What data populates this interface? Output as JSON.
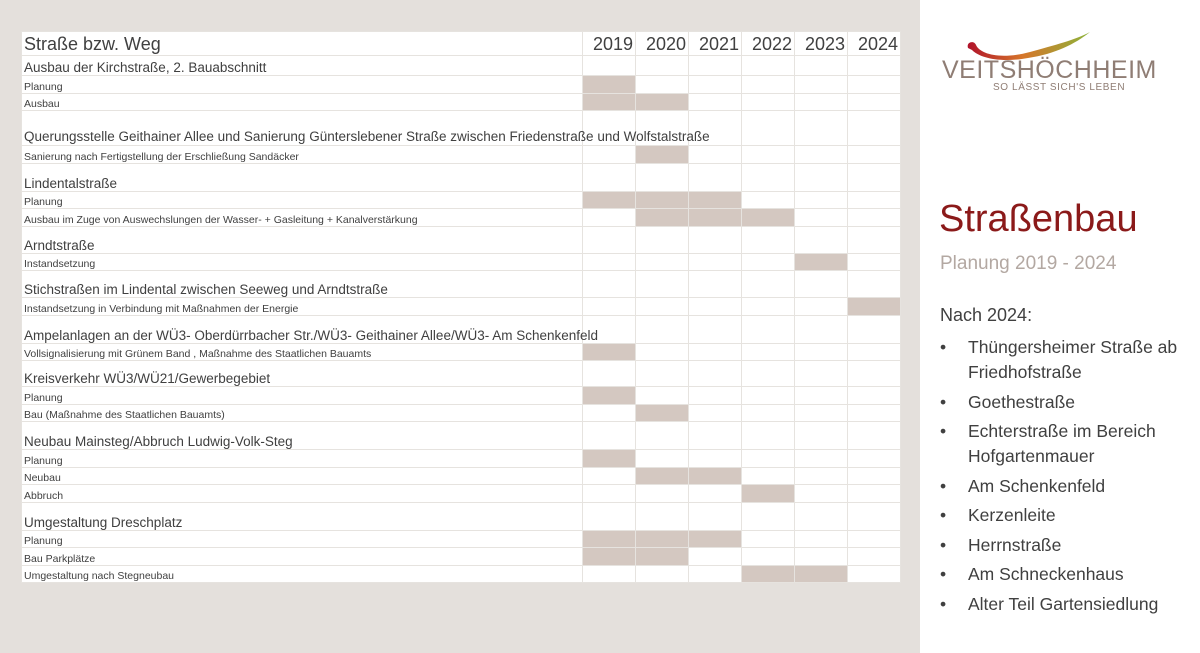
{
  "table": {
    "header_label": "Straße bzw. Weg",
    "years": [
      "2019",
      "2020",
      "2021",
      "2022",
      "2023",
      "2024"
    ],
    "groups": [
      {
        "title": "Ausbau der Kirchstraße, 2. Bauabschnitt",
        "items": [
          {
            "label": "Planung",
            "active": [
              true,
              false,
              false,
              false,
              false,
              false
            ]
          },
          {
            "label": "Ausbau",
            "active": [
              true,
              true,
              false,
              false,
              false,
              false
            ]
          }
        ]
      },
      {
        "title": "Querungsstelle Geithainer Allee und Sanierung Güntersleben​er Straße zwischen Friedenstraße und Wolfstalstraße",
        "items": [
          {
            "label": "Sanierung nach Fertigstellung der Erschließung Sandäcker",
            "active": [
              false,
              true,
              false,
              false,
              false,
              false
            ]
          }
        ]
      },
      {
        "title": "Lindentalstraße",
        "items": [
          {
            "label": "Planung",
            "active": [
              true,
              true,
              true,
              false,
              false,
              false
            ]
          },
          {
            "label": "Ausbau im Zuge von Auswechslungen der Wasser- + Gasleitung + Kanalverstärkung",
            "active": [
              false,
              true,
              true,
              true,
              false,
              false
            ]
          }
        ]
      },
      {
        "title": "Arndtstraße",
        "items": [
          {
            "label": "Instandsetzung",
            "active": [
              false,
              false,
              false,
              false,
              true,
              false
            ]
          }
        ]
      },
      {
        "title": "Stichstraßen im Lindental zwischen Seeweg und Arndtstraße",
        "items": [
          {
            "label": "Instandsetzung in Verbindung mit Maßnahmen der Energie",
            "active": [
              false,
              false,
              false,
              false,
              false,
              true
            ]
          }
        ]
      },
      {
        "title": "Ampelanlagen an der WÜ3- Oberdürrbacher Str./WÜ3- Geithainer Allee/WÜ3- Am Schenkenfeld",
        "items": [
          {
            "label": "Vollsignalisierung mit Grünem Band , Maßnahme des Staatlichen Bauamts",
            "active": [
              true,
              false,
              false,
              false,
              false,
              false
            ]
          }
        ]
      },
      {
        "title": "Kreisverkehr WÜ3/WÜ21/Gewerbegebiet",
        "items": [
          {
            "label": "Planung",
            "active": [
              true,
              false,
              false,
              false,
              false,
              false
            ]
          },
          {
            "label": "Bau (Maßnahme des Staatlichen Bauamts)",
            "active": [
              false,
              true,
              false,
              false,
              false,
              false
            ]
          }
        ]
      },
      {
        "title": "Neubau Mainsteg/Abbruch Ludwig-Volk-Steg",
        "items": [
          {
            "label": "Planung",
            "active": [
              true,
              false,
              false,
              false,
              false,
              false
            ]
          },
          {
            "label": "Neubau",
            "active": [
              false,
              true,
              true,
              false,
              false,
              false
            ]
          },
          {
            "label": "Abbruch",
            "active": [
              false,
              false,
              false,
              true,
              false,
              false
            ]
          }
        ]
      },
      {
        "title": "Umgestaltung Dreschplatz",
        "items": [
          {
            "label": "Planung",
            "active": [
              true,
              true,
              true,
              false,
              false,
              false
            ]
          },
          {
            "label": "Bau Parkplätze",
            "active": [
              true,
              true,
              false,
              false,
              false,
              false
            ]
          },
          {
            "label": "Umgestaltung nach Stegneubau",
            "active": [
              false,
              false,
              false,
              true,
              true,
              false
            ]
          }
        ]
      }
    ]
  },
  "logo": {
    "name": "VEITSHÖCHHEIM",
    "tagline": "SO LÄSST SICH'S LEBEN"
  },
  "side": {
    "title": "Straßenbau",
    "subtitle": "Planung 2019 - 2024",
    "after_heading": "Nach 2024:",
    "bullet": "•",
    "after_items": [
      "Thüngersheimer Straße ab Friedhofstraße",
      "Goethestraße",
      "Echterstraße im Bereich Hofgartenmauer",
      "Am Schenkenfeld",
      "Kerzenleite",
      "Herrnstraße",
      "Am Schneckenhaus",
      "Alter Teil Gartensiedlung"
    ]
  },
  "colors": {
    "active_cell": "#d4c8c1",
    "title": "#8b1a1a",
    "left_background": "#e4e0dc"
  }
}
